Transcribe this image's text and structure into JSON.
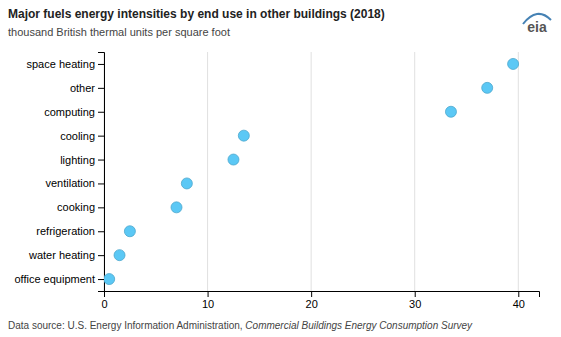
{
  "chart_data": {
    "type": "scatter",
    "title": "Major fuels energy intensities by end use in other buildings (2018)",
    "subtitle": "thousand British thermal units per square foot",
    "footnote": "Data source: U.S. Energy Information Administration, ",
    "footnote_italic": "Commercial Buildings Energy Consumption Survey",
    "annotations": [
      {
        "text": "eia"
      }
    ],
    "categories": [
      "space heating",
      "other",
      "computing",
      "cooling",
      "lighting",
      "ventilation",
      "cooking",
      "refrigeration",
      "water heating",
      "office equipment"
    ],
    "values": [
      39.5,
      37.0,
      33.5,
      13.5,
      12.5,
      8.0,
      7.0,
      2.5,
      1.5,
      0.5
    ],
    "color": "#5bc8f5",
    "orientation": "horizontal",
    "xlim": [
      0,
      42
    ],
    "xticks": [
      0,
      10,
      20,
      30,
      40
    ],
    "grid": true
  }
}
